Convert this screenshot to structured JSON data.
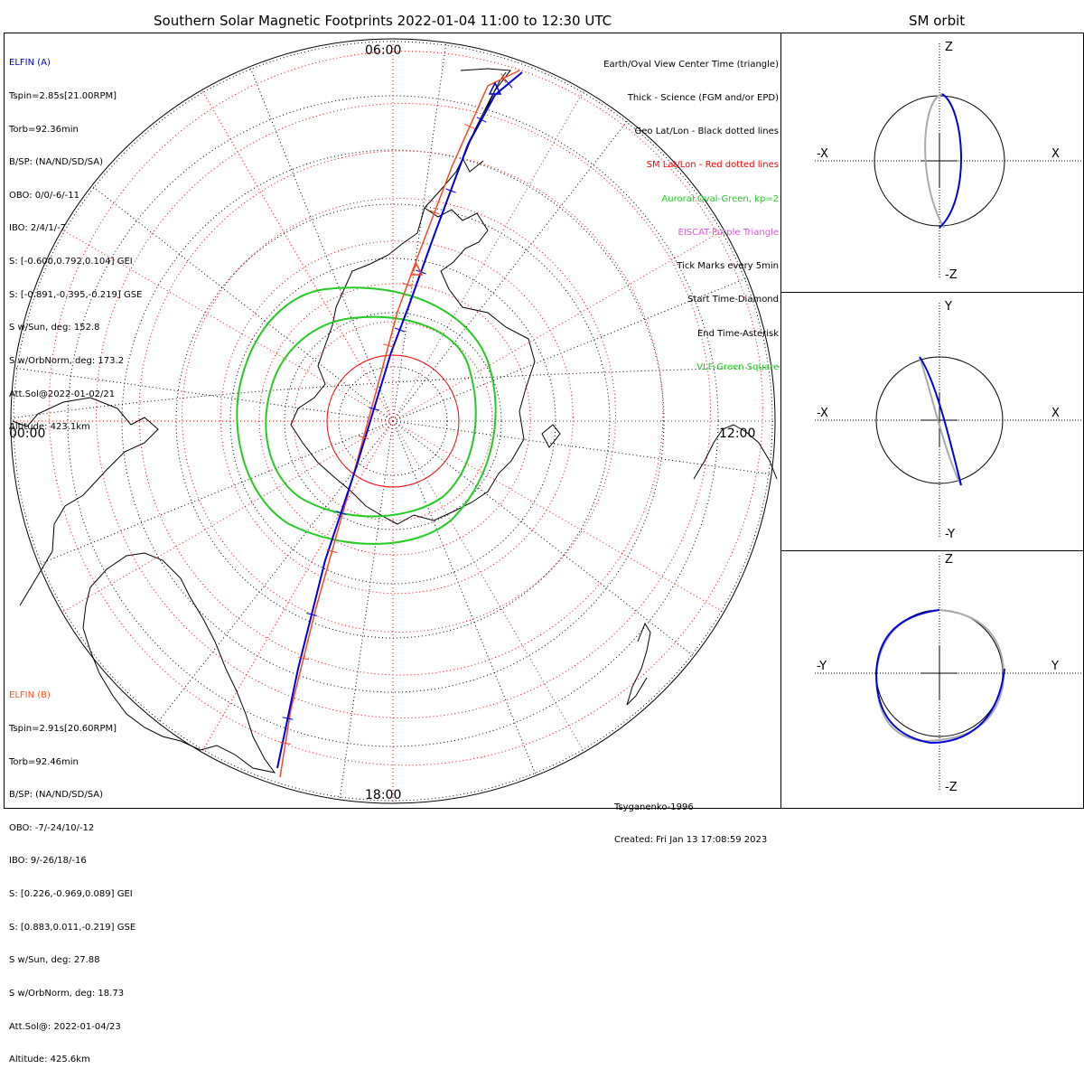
{
  "main": {
    "title": "Southern Solar Magnetic Footprints 2022-01-04 11:00 to 12:30 UTC",
    "hour_labels": {
      "top": "06:00",
      "left": "00:00",
      "right": "12:00",
      "bottom": "18:00"
    },
    "legend": [
      {
        "text": "Earth/Oval View Center Time (triangle)",
        "color": "#000000"
      },
      {
        "text": "Thick - Science (FGM and/or EPD)",
        "color": "#000000"
      },
      {
        "text": "Geo Lat/Lon - Black dotted lines",
        "color": "#000000"
      },
      {
        "text": "SM Lat/Lon - Red dotted lines",
        "color": "#ff0000"
      },
      {
        "text": "Auroral Oval-Green, kp=2",
        "color": "#22cc22"
      },
      {
        "text": "EISCAT-Purple Triangle",
        "color": "#dd55dd"
      },
      {
        "text": "Tick Marks every 5min",
        "color": "#000000"
      },
      {
        "text": "Start Time-Diamond",
        "color": "#000000"
      },
      {
        "text": "End Time-Asterisk",
        "color": "#000000"
      },
      {
        "text": "VLF-Green Square",
        "color": "#22cc22"
      }
    ],
    "probe_a": {
      "name": "ELFIN (A)",
      "color": "#0000cc",
      "lines": [
        "Tspin=2.85s[21.00RPM]",
        "Torb=92.36min",
        "B/SP: (NA/ND/SD/SA)",
        "OBO: 0/0/-6/-11",
        "IBO: 2/4/1/-7",
        "S: [-0.600,0.792,0.104] GEI",
        "S: [-0.891,-0.395,-0.219] GSE",
        "S w/Sun, deg: 152.8",
        "S w/OrbNorm, deg: 173.2",
        "Att.Sol@2022-01-02/21",
        "Altitude: 423.1km"
      ]
    },
    "probe_b": {
      "name": "ELFIN (B)",
      "color": "#ff5522",
      "lines": [
        "Tspin=2.91s[20.60RPM]",
        "Torb=92.46min",
        "B/SP: (NA/ND/SD/SA)",
        "OBO: -7/-24/10/-12",
        "IBO: 9/-26/18/-16",
        "S: [0.226,-0.969,0.089] GEI",
        "S: [0.883,0.011,-0.219] GSE",
        "S w/Sun, deg: 27.88",
        "S w/OrbNorm, deg: 18.73",
        "Att.Sol@: 2022-01-04/23",
        "Altitude: 425.6km"
      ]
    },
    "credit": {
      "model": "Tsyganenko-1996",
      "created": "Created: Fri Jan 13 17:08:59 2023"
    }
  },
  "orbit": {
    "title": "SM orbit",
    "panels": [
      {
        "top": "Z",
        "bottom": "-Z",
        "left": "-X",
        "right": "X"
      },
      {
        "top": "Y",
        "bottom": "-Y",
        "left": "-X",
        "right": "X"
      },
      {
        "top": "Z",
        "bottom": "-Z",
        "left": "-Y",
        "right": "Y"
      }
    ]
  },
  "colors": {
    "probe_a_track": "#0000dd",
    "probe_b_track": "#ff4422",
    "oval": "#22cc22",
    "sm_grid": "#ff0000",
    "geo_grid": "#000000",
    "orbit_shadow": "#aaaaaa"
  }
}
